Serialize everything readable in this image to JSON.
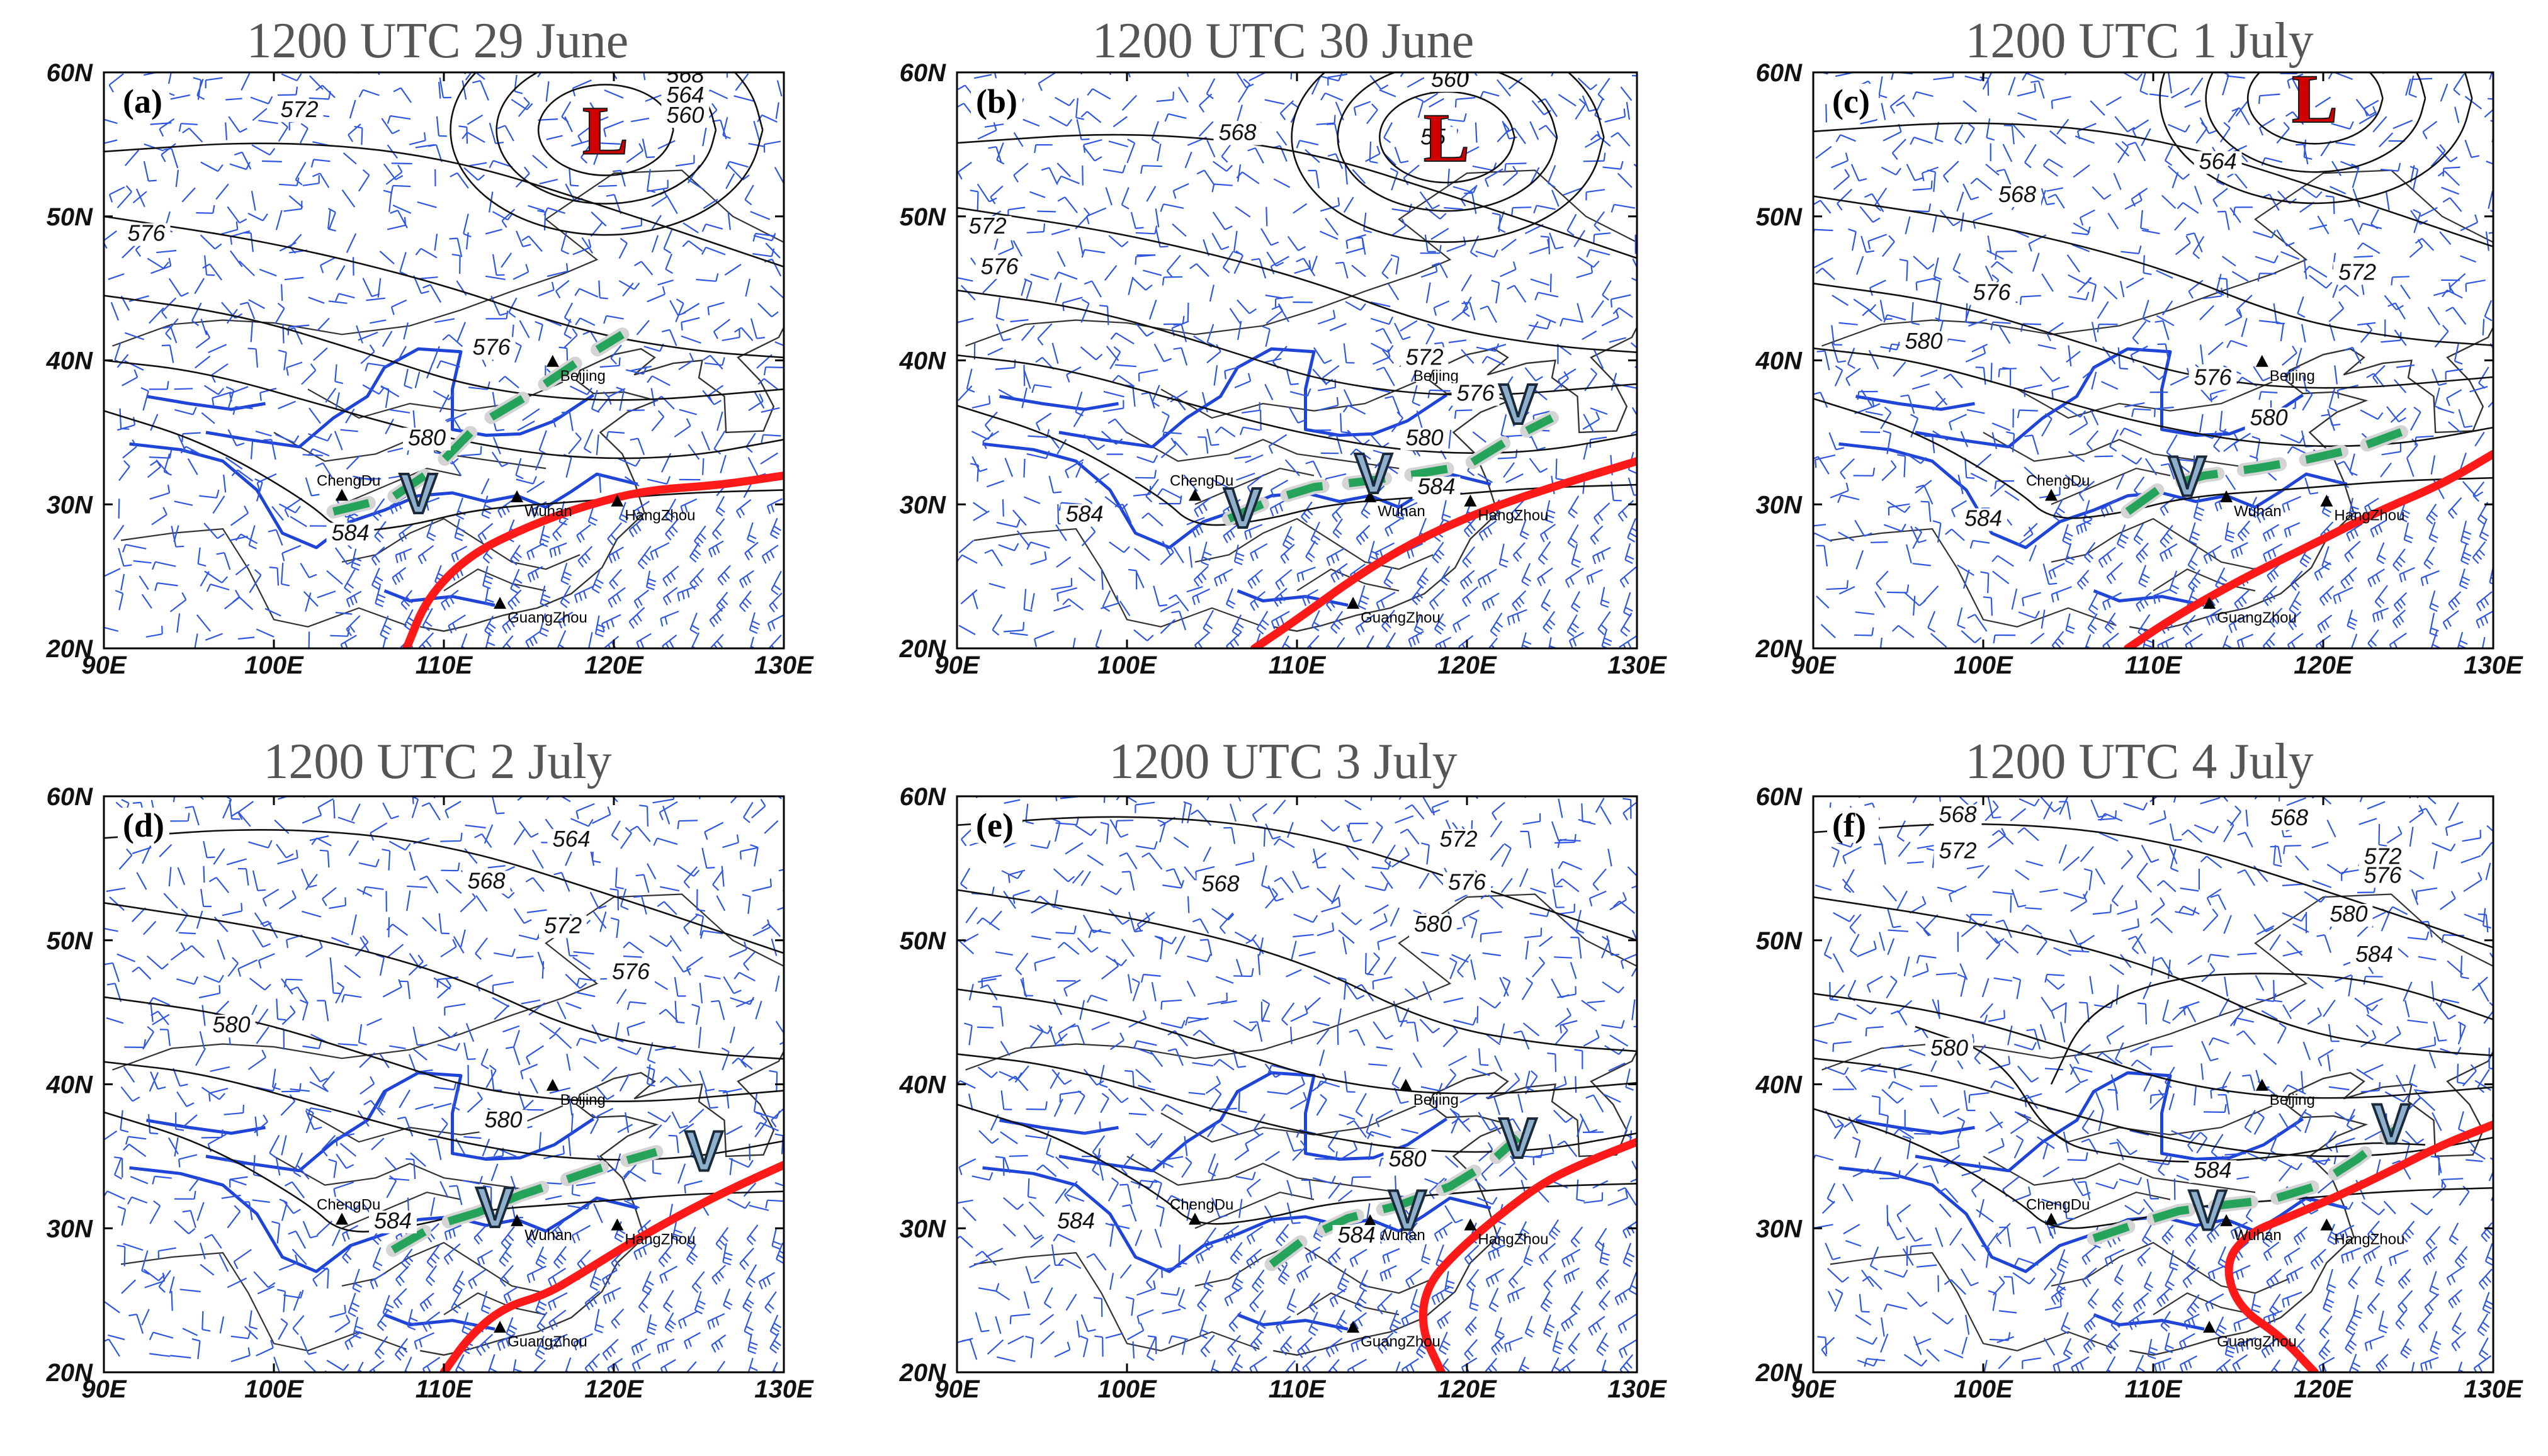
{
  "panels": [
    {
      "id": "a",
      "letter": "(a)",
      "title": "1200 UTC 29 June",
      "lows": [
        {
          "label": "L",
          "lon": 119.5,
          "lat": 56.0
        }
      ],
      "contour_labels": [
        {
          "text": "568",
          "lon": 124.2,
          "lat": 59.3
        },
        {
          "text": "564",
          "lon": 124.2,
          "lat": 57.9
        },
        {
          "text": "560",
          "lon": 124.2,
          "lat": 56.5
        },
        {
          "text": "572",
          "lon": 101.5,
          "lat": 56.9
        },
        {
          "text": "576",
          "lon": 92.5,
          "lat": 48.3
        },
        {
          "text": "576",
          "lon": 112.8,
          "lat": 40.4
        },
        {
          "text": "580",
          "lon": 109.0,
          "lat": 34.1
        },
        {
          "text": "584",
          "lon": 104.5,
          "lat": 27.5
        }
      ],
      "troughs": [
        {
          "label": "V",
          "lon": 108.5,
          "lat": 30.8
        }
      ]
    },
    {
      "id": "b",
      "letter": "(b)",
      "title": "1200 UTC 30 June",
      "lows": [
        {
          "label": "L",
          "lon": 118.8,
          "lat": 55.5
        }
      ],
      "contour_labels": [
        {
          "text": "560",
          "lon": 119.0,
          "lat": 59.0
        },
        {
          "text": "55",
          "lon": 118.0,
          "lat": 55.0
        },
        {
          "text": "568",
          "lon": 106.5,
          "lat": 55.3
        },
        {
          "text": "572",
          "lon": 91.8,
          "lat": 48.8
        },
        {
          "text": "576",
          "lon": 92.5,
          "lat": 46.0
        },
        {
          "text": "572",
          "lon": 117.5,
          "lat": 39.7
        },
        {
          "text": "576",
          "lon": 120.5,
          "lat": 37.2
        },
        {
          "text": "580",
          "lon": 117.5,
          "lat": 34.1
        },
        {
          "text": "584",
          "lon": 118.2,
          "lat": 30.7
        },
        {
          "text": "584",
          "lon": 97.5,
          "lat": 28.8
        }
      ],
      "troughs": [
        {
          "label": "V",
          "lon": 123.0,
          "lat": 37.0
        },
        {
          "label": "V",
          "lon": 114.5,
          "lat": 32.2
        },
        {
          "label": "V",
          "lon": 106.8,
          "lat": 29.8
        }
      ]
    },
    {
      "id": "c",
      "letter": "(c)",
      "title": "1200 UTC 1 July",
      "lows": [
        {
          "label": "L",
          "lon": 119.5,
          "lat": 58.2
        }
      ],
      "contour_labels": [
        {
          "text": "564",
          "lon": 113.8,
          "lat": 53.3
        },
        {
          "text": "568",
          "lon": 102.0,
          "lat": 51.0
        },
        {
          "text": "572",
          "lon": 122.0,
          "lat": 45.6
        },
        {
          "text": "576",
          "lon": 100.5,
          "lat": 44.2
        },
        {
          "text": "580",
          "lon": 96.5,
          "lat": 40.8
        },
        {
          "text": "576",
          "lon": 113.5,
          "lat": 38.3
        },
        {
          "text": "580",
          "lon": 116.8,
          "lat": 35.5
        },
        {
          "text": "584",
          "lon": 100.0,
          "lat": 28.5
        }
      ],
      "troughs": [
        {
          "label": "V",
          "lon": 112.0,
          "lat": 32.0
        }
      ]
    },
    {
      "id": "d",
      "letter": "(d)",
      "title": "1200 UTC 2 July",
      "lows": [],
      "contour_labels": [
        {
          "text": "564",
          "lon": 117.5,
          "lat": 56.5
        },
        {
          "text": "568",
          "lon": 112.5,
          "lat": 53.6
        },
        {
          "text": "572",
          "lon": 117.0,
          "lat": 50.5
        },
        {
          "text": "576",
          "lon": 121.0,
          "lat": 47.3
        },
        {
          "text": "580",
          "lon": 97.5,
          "lat": 43.6
        },
        {
          "text": "580",
          "lon": 113.5,
          "lat": 37.0
        },
        {
          "text": "584",
          "lon": 107.0,
          "lat": 30.0
        }
      ],
      "troughs": [
        {
          "label": "V",
          "lon": 125.3,
          "lat": 35.4
        },
        {
          "label": "V",
          "lon": 113.0,
          "lat": 31.5
        }
      ]
    },
    {
      "id": "e",
      "letter": "(e)",
      "title": "1200 UTC 3 July",
      "lows": [],
      "contour_labels": [
        {
          "text": "572",
          "lon": 119.5,
          "lat": 56.5
        },
        {
          "text": "568",
          "lon": 105.5,
          "lat": 53.4
        },
        {
          "text": "576",
          "lon": 120.0,
          "lat": 53.5
        },
        {
          "text": "580",
          "lon": 118.0,
          "lat": 50.6
        },
        {
          "text": "580",
          "lon": 116.5,
          "lat": 34.3
        },
        {
          "text": "584",
          "lon": 113.5,
          "lat": 29.0
        },
        {
          "text": "584",
          "lon": 97.0,
          "lat": 30.0
        }
      ],
      "troughs": [
        {
          "label": "V",
          "lon": 123.0,
          "lat": 36.3
        },
        {
          "label": "V",
          "lon": 116.5,
          "lat": 31.3
        }
      ]
    },
    {
      "id": "f",
      "letter": "(f)",
      "title": "1200 UTC 4 July",
      "lows": [],
      "contour_labels": [
        {
          "text": "568",
          "lon": 98.5,
          "lat": 58.2
        },
        {
          "text": "568",
          "lon": 118.0,
          "lat": 58.0
        },
        {
          "text": "572",
          "lon": 98.5,
          "lat": 55.7
        },
        {
          "text": "572",
          "lon": 123.5,
          "lat": 55.3
        },
        {
          "text": "576",
          "lon": 123.5,
          "lat": 54.0
        },
        {
          "text": "580",
          "lon": 121.5,
          "lat": 51.3
        },
        {
          "text": "584",
          "lon": 123.0,
          "lat": 48.5
        },
        {
          "text": "580",
          "lon": 98.0,
          "lat": 42.0
        },
        {
          "text": "584",
          "lon": 113.5,
          "lat": 33.5
        }
      ],
      "troughs": [
        {
          "label": "V",
          "lon": 124.0,
          "lat": 37.3
        },
        {
          "label": "V",
          "lon": 113.2,
          "lat": 31.3
        }
      ]
    }
  ],
  "cities": [
    {
      "name": "ChengDu",
      "lon": 104.0,
      "lat": 30.6
    },
    {
      "name": "Wuhan",
      "lon": 114.3,
      "lat": 30.5
    },
    {
      "name": "Beijing",
      "lon": 116.4,
      "lat": 39.9
    },
    {
      "name": "HangZhou",
      "lon": 120.2,
      "lat": 30.2
    },
    {
      "name": "GuangZhou",
      "lon": 113.3,
      "lat": 23.1
    }
  ],
  "axes": {
    "lon_ticks": [
      "90E",
      "100E",
      "110E",
      "120E",
      "130E"
    ],
    "lat_ticks": [
      "20N",
      "30N",
      "40N",
      "50N",
      "60N"
    ],
    "lon_range": [
      90,
      130
    ],
    "lat_range": [
      20,
      60
    ]
  },
  "colors": {
    "contour": "#111111",
    "wind": "#2e56e0",
    "border": "#333333",
    "river": "#1f45d8",
    "jet_axis": "#ff1a1a",
    "shear_line": "#26a35a",
    "trough_fill": "#8fb0cc",
    "low": "#d00000",
    "title": "#555555"
  }
}
